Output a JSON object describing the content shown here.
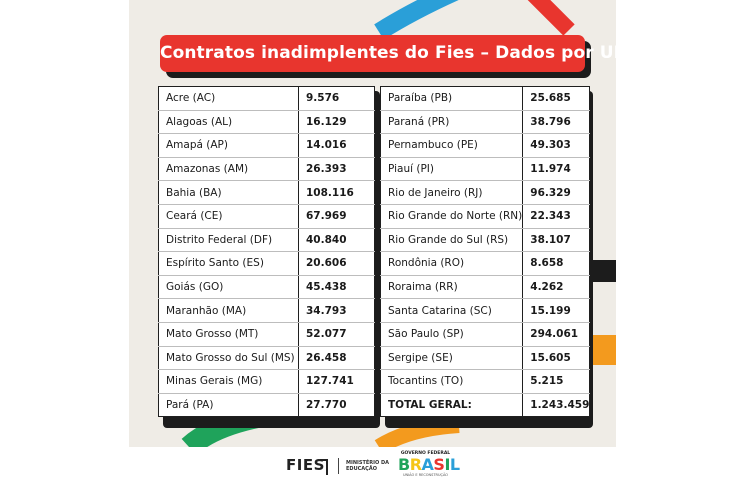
{
  "title": "Contratos inadimplentes do Fies – Dados por UF",
  "left_table": [
    {
      "uf": "Acre (AC)",
      "value": "9.576"
    },
    {
      "uf": "Alagoas (AL)",
      "value": "16.129"
    },
    {
      "uf": "Amapá (AP)",
      "value": "14.016"
    },
    {
      "uf": "Amazonas (AM)",
      "value": "26.393"
    },
    {
      "uf": "Bahia (BA)",
      "value": "108.116"
    },
    {
      "uf": "Ceará (CE)",
      "value": "67.969"
    },
    {
      "uf": "Distrito Federal (DF)",
      "value": "40.840"
    },
    {
      "uf": "Espírito Santo (ES)",
      "value": "20.606"
    },
    {
      "uf": "Goiás (GO)",
      "value": "45.438"
    },
    {
      "uf": "Maranhão (MA)",
      "value": "34.793"
    },
    {
      "uf": "Mato Grosso (MT)",
      "value": "52.077"
    },
    {
      "uf": "Mato Grosso do Sul (MS)",
      "value": "26.458"
    },
    {
      "uf": "Minas Gerais (MG)",
      "value": "127.741"
    },
    {
      "uf": "Pará (PA)",
      "value": "27.770"
    }
  ],
  "right_table": [
    {
      "uf": "Paraíba (PB)",
      "value": "25.685"
    },
    {
      "uf": "Paraná (PR)",
      "value": "38.796"
    },
    {
      "uf": "Pernambuco (PE)",
      "value": "49.303"
    },
    {
      "uf": "Piauí (PI)",
      "value": "11.974"
    },
    {
      "uf": "Rio de Janeiro (RJ)",
      "value": "96.329"
    },
    {
      "uf": "Rio Grande do Norte (RN)",
      "value": "22.343"
    },
    {
      "uf": "Rio Grande do Sul (RS)",
      "value": "38.107"
    },
    {
      "uf": "Rondônia (RO)",
      "value": "8.658"
    },
    {
      "uf": "Roraima (RR)",
      "value": "4.262"
    },
    {
      "uf": "Santa Catarina (SC)",
      "value": "15.199"
    },
    {
      "uf": "São Paulo (SP)",
      "value": "294.061"
    },
    {
      "uf": "Sergipe (SE)",
      "value": "15.605"
    },
    {
      "uf": "Tocantins (TO)",
      "value": "5.215"
    },
    {
      "uf": "TOTAL GERAL:",
      "value": "1.243.459"
    }
  ],
  "footer": {
    "fies_logo": "FIES",
    "ministry_line1": "MINISTÉRIO DA",
    "ministry_line2": "EDUCAÇÃO",
    "gov_top": "GOVERNO FEDERAL",
    "gov_brasil": "BRASIL",
    "gov_sub": "UNIÃO E RECONSTRUÇÃO"
  },
  "colors": {
    "title_bg": "#e8352e",
    "card_bg": "#efece6",
    "deco_blue": "#2a9fd8",
    "deco_red": "#e8352e",
    "deco_orange": "#f39a1e",
    "deco_green": "#1fa35b",
    "deco_black": "#1c1c1c"
  }
}
